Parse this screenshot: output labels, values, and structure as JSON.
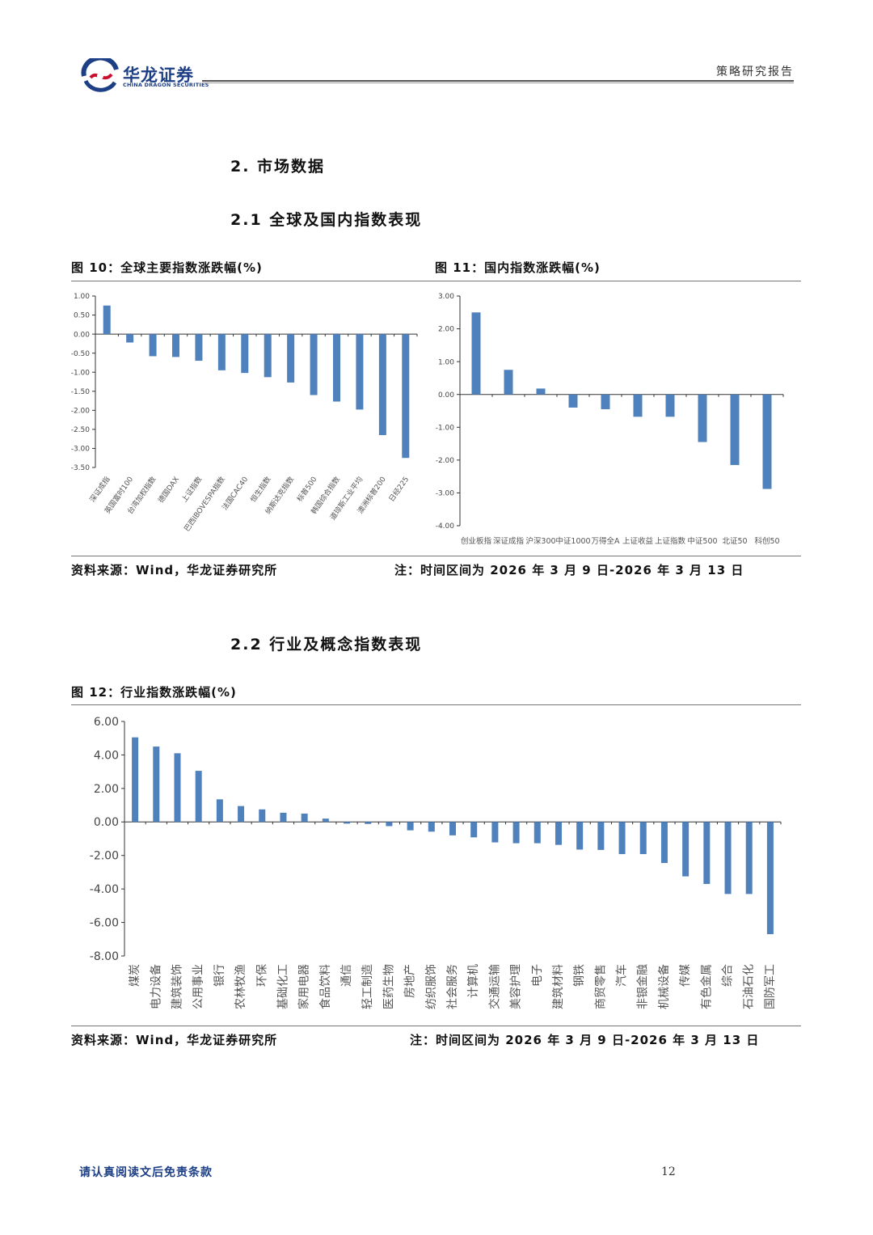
{
  "header": {
    "brand_cn": "华龙证券",
    "brand_en": "CHINA DRAGON SECURITIES",
    "report_type": "策略研究报告"
  },
  "sections": {
    "s2": "2. 市场数据",
    "s21": "2.1 全球及国内指数表现",
    "s22": "2.2 行业及概念指数表现"
  },
  "fig10": {
    "title": "图 10：全球主要指数涨跌幅(%)",
    "source": "资料来源：Wind，华龙证券研究所"
  },
  "fig11": {
    "title": "图 11：国内指数涨跌幅(%)",
    "note": "注：时间区间为 2026 年 3 月 9 日-2026 年 3 月 13 日"
  },
  "fig12": {
    "title": "图 12：行业指数涨跌幅(%)",
    "source": "资料来源：Wind，华龙证券研究所",
    "note": "注：时间区间为 2026 年 3 月 9 日-2026 年 3 月 13 日"
  },
  "footer": {
    "disclaimer": "请认真阅读文后免责条款",
    "page": "12"
  },
  "colors": {
    "bar": "#4f81bd",
    "brand": "#1d3f86",
    "brand_red": "#c8102e"
  },
  "chart_data": [
    {
      "id": "fig10",
      "type": "bar",
      "title": "全球主要指数涨跌幅(%)",
      "categories": [
        "深证成指",
        "英国富时100",
        "台湾加权指数",
        "德国DAX",
        "上证指数",
        "巴西IBOVESPA指数",
        "法国CAC40",
        "恒生指数",
        "纳斯达克指数",
        "标普500",
        "韩国综合指数",
        "道琼斯工业平均",
        "澳洲标普200",
        "日经225"
      ],
      "values": [
        0.75,
        -0.22,
        -0.58,
        -0.6,
        -0.7,
        -0.95,
        -1.02,
        -1.13,
        -1.27,
        -1.6,
        -1.77,
        -1.98,
        -2.65,
        -3.25
      ],
      "ylim": [
        -3.5,
        1.0
      ],
      "yticks": [
        1.0,
        0.5,
        0.0,
        -0.5,
        -1.0,
        -1.5,
        -2.0,
        -2.5,
        -3.0,
        -3.5
      ],
      "ytick_labels": [
        "1.00",
        "0.50",
        "0.00",
        "-0.50",
        "-1.00",
        "-1.50",
        "-2.00",
        "-2.50",
        "-3.00",
        "-3.50"
      ],
      "xlabel": "",
      "ylabel": ""
    },
    {
      "id": "fig11",
      "type": "bar",
      "title": "国内指数涨跌幅(%)",
      "categories": [
        "创业板指",
        "深证成指",
        "沪深300",
        "中证1000",
        "万得全A",
        "上证收益",
        "上证指数",
        "中证500",
        "北证50",
        "科创50"
      ],
      "values": [
        2.5,
        0.75,
        0.18,
        -0.4,
        -0.45,
        -0.68,
        -0.68,
        -1.45,
        -2.15,
        -2.88
      ],
      "ylim": [
        -4.0,
        3.0
      ],
      "yticks": [
        3.0,
        2.0,
        1.0,
        0.0,
        -1.0,
        -2.0,
        -3.0,
        -4.0
      ],
      "ytick_labels": [
        "3.00",
        "2.00",
        "1.00",
        "0.00",
        "-1.00",
        "-2.00",
        "-3.00",
        "-4.00"
      ],
      "xlabel": "",
      "ylabel": ""
    },
    {
      "id": "fig12",
      "type": "bar",
      "title": "行业指数涨跌幅(%)",
      "categories": [
        "煤炭",
        "电力设备",
        "建筑装饰",
        "公用事业",
        "银行",
        "农林牧渔",
        "环保",
        "基础化工",
        "家用电器",
        "食品饮料",
        "通信",
        "轻工制造",
        "医药生物",
        "房地产",
        "纺织服饰",
        "社会服务",
        "计算机",
        "交通运输",
        "美容护理",
        "电子",
        "建筑材料",
        "钢铁",
        "商贸零售",
        "汽车",
        "非银金融",
        "机械设备",
        "传媒",
        "有色金属",
        "综合",
        "石油石化",
        "国防军工"
      ],
      "values": [
        5.05,
        4.5,
        4.1,
        3.05,
        1.35,
        0.95,
        0.75,
        0.55,
        0.5,
        0.2,
        -0.1,
        -0.12,
        -0.25,
        -0.5,
        -0.58,
        -0.8,
        -0.92,
        -1.22,
        -1.27,
        -1.27,
        -1.37,
        -1.65,
        -1.67,
        -1.92,
        -1.92,
        -2.45,
        -3.25,
        -3.7,
        -4.3,
        -4.3,
        -6.7
      ],
      "ylim": [
        -8.0,
        6.0
      ],
      "yticks": [
        6.0,
        4.0,
        2.0,
        0.0,
        -2.0,
        -4.0,
        -6.0,
        -8.0
      ],
      "ytick_labels": [
        "6.00",
        "4.00",
        "2.00",
        "0.00",
        "-2.00",
        "-4.00",
        "-6.00",
        "-8.00"
      ],
      "xlabel": "",
      "ylabel": ""
    }
  ]
}
